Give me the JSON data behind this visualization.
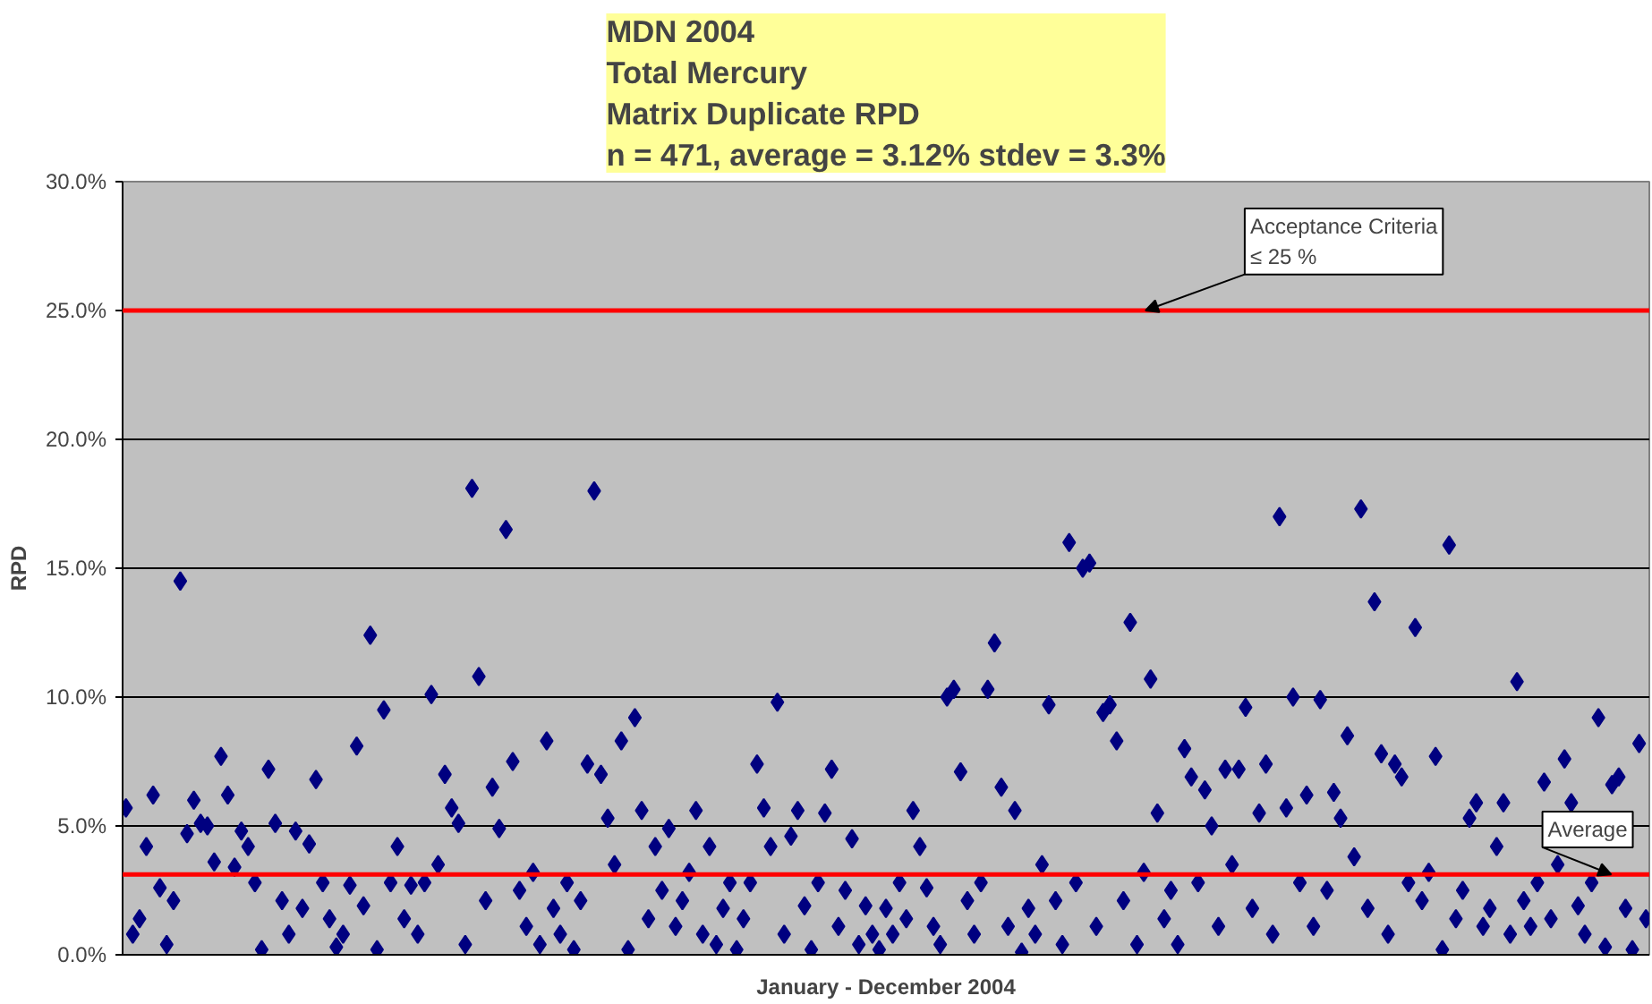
{
  "chart_data": {
    "type": "scatter",
    "title": "MDN 2004\nTotal Mercury\nMatrix Duplicate RPD\nn = 471, average = 3.12% stdev = 3.3%",
    "xlabel": "January - December 2004",
    "ylabel": "RPD",
    "categories": [
      null,
      null,
      null,
      null,
      null,
      null,
      null,
      null,
      null,
      null,
      null,
      null,
      null,
      null,
      null,
      null,
      null,
      null,
      null,
      null,
      null,
      null,
      null,
      null,
      null,
      null,
      null,
      null,
      null,
      null,
      null,
      null,
      null,
      null,
      null,
      null,
      null,
      null,
      null,
      null,
      null,
      null,
      null,
      null,
      null,
      null,
      null,
      null,
      null,
      null,
      null,
      null,
      null,
      null,
      null,
      null,
      null,
      null,
      null,
      null,
      null,
      null,
      null,
      null,
      null,
      null,
      null,
      null,
      null,
      null,
      null,
      null,
      null,
      null,
      null,
      null,
      null,
      null,
      null,
      null,
      null,
      null,
      null,
      null,
      null,
      null,
      null,
      null,
      null,
      null,
      null,
      null,
      null,
      null,
      null,
      null,
      null,
      null,
      null,
      null,
      null,
      null,
      null,
      null,
      null,
      null,
      null,
      null,
      null,
      null,
      null,
      null,
      null,
      null,
      null,
      null,
      null,
      null,
      null,
      null,
      null,
      null,
      null,
      null,
      null,
      null,
      null,
      null,
      null,
      null,
      null,
      null,
      null,
      null,
      null,
      null,
      null,
      null,
      null,
      null,
      null,
      null,
      null,
      null,
      null,
      null,
      null,
      null,
      null,
      null,
      null,
      null,
      null,
      null,
      null,
      null,
      null,
      null,
      null,
      null,
      null,
      null,
      null,
      null,
      null,
      null,
      null,
      null,
      null,
      null,
      null,
      null,
      null,
      null,
      null,
      null,
      null,
      null,
      null,
      null,
      null,
      null,
      null,
      null,
      null,
      null,
      null,
      null,
      null,
      null,
      null,
      null,
      null,
      null,
      null,
      null,
      null,
      null,
      null,
      null,
      null,
      null,
      null,
      null,
      null,
      null,
      null,
      null,
      null,
      null,
      null,
      null,
      null,
      null,
      null,
      null,
      null,
      null,
      null,
      null,
      null,
      null,
      null,
      null,
      null
    ],
    "series": [
      {
        "color": "#000080",
        "values": [
          5.7,
          0.8,
          1.4,
          4.2,
          6.2,
          2.6,
          0.4,
          2.1,
          14.5,
          4.7,
          6.0,
          5.1,
          5.0,
          3.6,
          7.7,
          6.2,
          3.4,
          4.8,
          4.2,
          2.8,
          0.2,
          7.2,
          5.1,
          2.1,
          0.8,
          4.8,
          1.8,
          4.3,
          6.8,
          2.8,
          1.4,
          0.3,
          0.8,
          2.7,
          8.1,
          1.9,
          12.4,
          0.2,
          9.5,
          2.8,
          4.2,
          1.4,
          2.7,
          0.8,
          2.8,
          10.1,
          3.5,
          7.0,
          5.7,
          5.1,
          0.4,
          18.1,
          10.8,
          2.1,
          6.5,
          4.9,
          16.5,
          7.5,
          2.5,
          1.1,
          3.2,
          0.4,
          8.3,
          1.8,
          0.8,
          2.8,
          0.2,
          2.1,
          7.4,
          18.0,
          7.0,
          5.3,
          3.5,
          8.3,
          0.2,
          9.2,
          5.6,
          1.4,
          4.2,
          2.5,
          4.9,
          1.1,
          2.1,
          3.2,
          5.6,
          0.8,
          4.2,
          0.4,
          1.8,
          2.8,
          0.2,
          1.4,
          2.8,
          7.4,
          5.7,
          4.2,
          9.8,
          0.8,
          4.6,
          5.6,
          1.9,
          0.2,
          2.8,
          5.5,
          7.2,
          1.1,
          2.5,
          4.5,
          0.4,
          1.9,
          0.8,
          0.2,
          1.8,
          0.8,
          2.8,
          1.4,
          5.6,
          4.2,
          2.6,
          1.1,
          0.4,
          10.0,
          10.3,
          7.1,
          2.1,
          0.8,
          2.8,
          10.3,
          12.1,
          6.5,
          1.1,
          5.6,
          0.1,
          1.8,
          0.8,
          3.5,
          9.7,
          2.1,
          0.4,
          16.0,
          2.8,
          15.0,
          15.2,
          1.1,
          9.4,
          9.7,
          8.3,
          2.1,
          12.9,
          0.4,
          3.2,
          10.7,
          5.5,
          1.4,
          2.5,
          0.4,
          8.0,
          6.9,
          2.8,
          6.4,
          5.0,
          1.1,
          7.2,
          3.5,
          7.2,
          9.6,
          1.8,
          5.5,
          7.4,
          0.8,
          17.0,
          5.7,
          10.0,
          2.8,
          6.2,
          1.1,
          9.9,
          2.5,
          6.3,
          5.3,
          8.5,
          3.8,
          17.3,
          1.8,
          13.7,
          7.8,
          0.8,
          7.4,
          6.9,
          2.8,
          12.7,
          2.1,
          3.2,
          7.7,
          0.2,
          15.9,
          1.4,
          2.5,
          5.3,
          5.9,
          1.1,
          1.8,
          4.2,
          5.9,
          0.8,
          10.6,
          2.1,
          1.1,
          2.8,
          6.7,
          1.4,
          3.5,
          7.6,
          5.9,
          1.9,
          0.8,
          2.8,
          9.2,
          0.3,
          6.6,
          6.9,
          1.8,
          0.2,
          8.2,
          1.4
        ]
      }
    ],
    "ylim": [
      0,
      30
    ],
    "yticks": [
      {
        "value": 0,
        "label": "0.0%"
      },
      {
        "value": 5,
        "label": "5.0%"
      },
      {
        "value": 10,
        "label": "10.0%"
      },
      {
        "value": 15,
        "label": "15.0%"
      },
      {
        "value": 20,
        "label": "20.0%"
      },
      {
        "value": 25,
        "label": "25.0%"
      },
      {
        "value": 30,
        "label": "30.0%"
      }
    ],
    "grid": "y",
    "marker": "diamond",
    "tick_labels": "y",
    "ref_lines": [
      {
        "axis": "y",
        "value": 25,
        "label": "Acceptance Criteria\n≤ 25 %",
        "color": "#ff0000"
      },
      {
        "axis": "y",
        "value": 3.12,
        "label": "Average",
        "color": "#ff0000"
      }
    ]
  }
}
